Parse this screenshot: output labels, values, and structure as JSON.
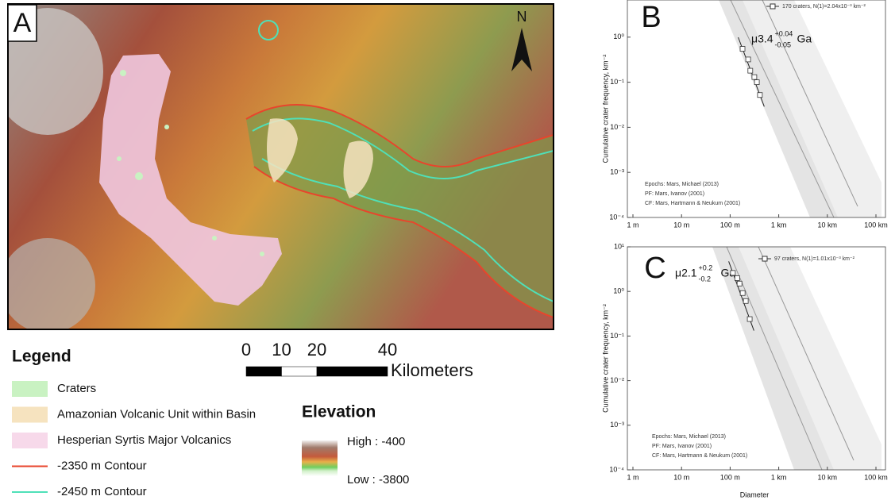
{
  "map": {
    "label": "A",
    "north": "N",
    "scale_bar": {
      "ticks": [
        0,
        10,
        20,
        40
      ],
      "unit": "Kilometers"
    }
  },
  "legend": {
    "title": "Legend",
    "items": [
      {
        "label": "Craters",
        "kind": "patch",
        "color": "#c9f2c2"
      },
      {
        "label": "Amazonian Volcanic Unit within Basin",
        "kind": "patch",
        "color": "#f6e3bf"
      },
      {
        "label": "Hesperian Syrtis Major Volcanics",
        "kind": "patch",
        "color": "#f7d9ea"
      },
      {
        "label": "-2350 m Contour",
        "kind": "line",
        "color": "#e8452c"
      },
      {
        "label": "-2450 m Contour",
        "kind": "line",
        "color": "#4fe0b8"
      }
    ]
  },
  "elevation": {
    "title": "Elevation",
    "high": "High : -400",
    "low": "Low : -3800"
  },
  "plots": [
    {
      "label": "B",
      "legend": "170 craters, N(1)=2.04x10⁻³ km⁻²",
      "age": {
        "value": "μ3.4",
        "plus": "+0.04",
        "minus": "-0.05",
        "unit": "Ga"
      },
      "notes": [
        "Epochs: Mars, Michael (2013)",
        "PF: Mars, Ivanov (2001)",
        "CF: Mars, Hartmann & Neukum (2001)"
      ],
      "ylabel": "Cumulative crater frequency, km⁻²",
      "log_scale": true,
      "xlim": [
        1,
        100000
      ],
      "ylim": [
        0.0001,
        10
      ],
      "xticks": [
        {
          "value": 1,
          "label": "1 m"
        },
        {
          "value": 10,
          "label": "10 m"
        },
        {
          "value": 100,
          "label": "100 m"
        },
        {
          "value": 1000,
          "label": "1 km"
        },
        {
          "value": 10000,
          "label": "10 km"
        },
        {
          "value": 100000,
          "label": "100 km"
        }
      ],
      "yticks": [
        {
          "value": 1,
          "label": "10⁰"
        },
        {
          "value": 0.1,
          "label": "10⁻¹"
        },
        {
          "value": 0.01,
          "label": "10⁻²"
        },
        {
          "value": 0.001,
          "label": "10⁻³"
        },
        {
          "value": 0.0001,
          "label": "10⁻⁴"
        }
      ],
      "diameter": [
        180,
        235,
        260,
        315,
        355,
        410
      ],
      "frequency": [
        0.55,
        0.32,
        0.18,
        0.13,
        0.1,
        0.052
      ]
    },
    {
      "label": "C",
      "legend": "97 craters, N(1)=1.01x10⁻³ km⁻²",
      "age": {
        "value": "μ2.1",
        "plus": "+0.2",
        "minus": "-0.2",
        "unit": "Ga"
      },
      "notes": [
        "Epochs: Mars, Michael (2013)",
        "PF: Mars, Ivanov (2001)",
        "CF: Mars, Hartmann & Neukum (2001)"
      ],
      "ylabel": "Cumulative crater frequency, km⁻²",
      "xlabel": "Diameter",
      "log_scale": true,
      "xlim": [
        1,
        100000
      ],
      "ylim": [
        0.0001,
        10
      ],
      "xticks": [
        {
          "value": 1,
          "label": "1 m"
        },
        {
          "value": 10,
          "label": "10 m"
        },
        {
          "value": 100,
          "label": "100 m"
        },
        {
          "value": 1000,
          "label": "1 km"
        },
        {
          "value": 10000,
          "label": "10 km"
        },
        {
          "value": 100000,
          "label": "100 km"
        }
      ],
      "yticks": [
        {
          "value": 10,
          "label": "10¹"
        },
        {
          "value": 1,
          "label": "10⁰"
        },
        {
          "value": 0.1,
          "label": "10⁻¹"
        },
        {
          "value": 0.01,
          "label": "10⁻²"
        },
        {
          "value": 0.001,
          "label": "10⁻³"
        },
        {
          "value": 0.0001,
          "label": "10⁻⁴"
        }
      ],
      "diameter": [
        114,
        140,
        156,
        181,
        210,
        253
      ],
      "frequency": [
        2.6,
        1.99,
        1.5,
        0.92,
        0.61,
        0.24
      ]
    }
  ]
}
